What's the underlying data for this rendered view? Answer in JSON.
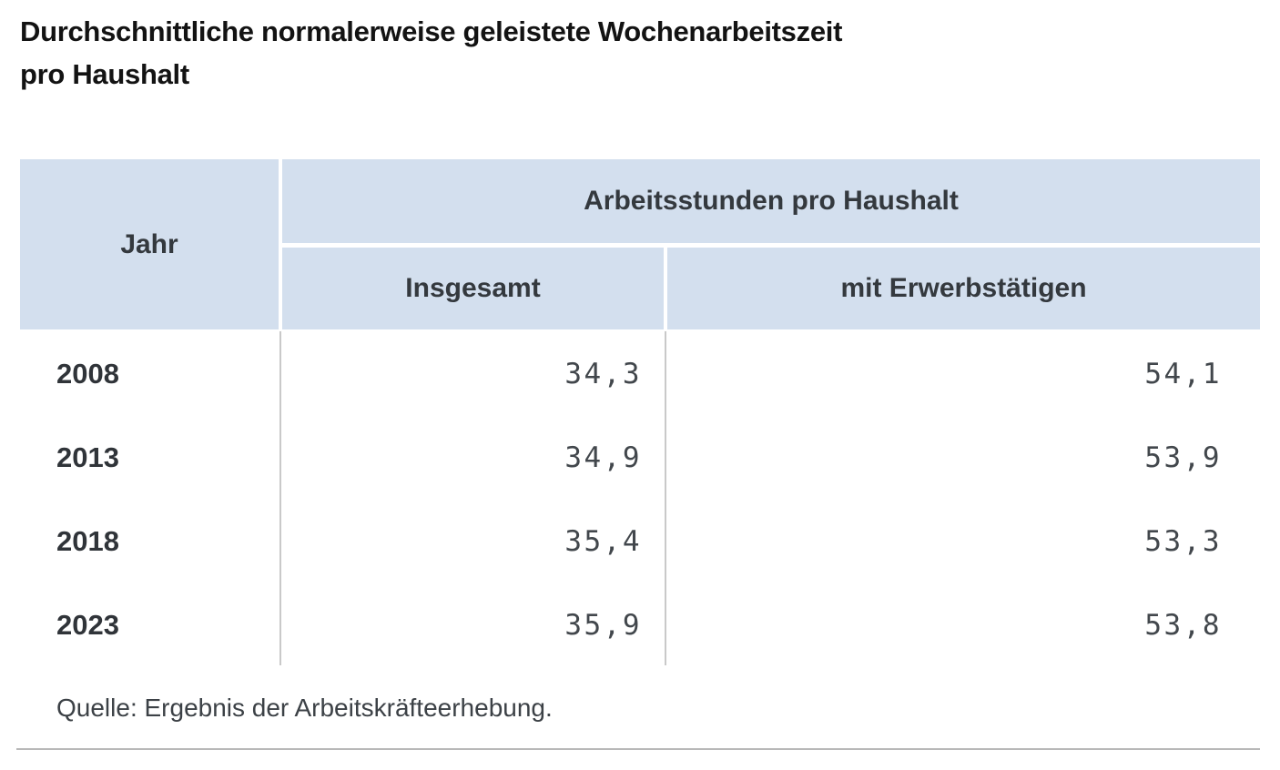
{
  "title": {
    "line1": "Durchschnittliche normalerweise geleistete Wochenarbeitszeit",
    "line2": "pro Haushalt"
  },
  "table": {
    "year_header": "Jahr",
    "group_header": "Arbeitsstunden pro Haushalt",
    "sub_header_total": "Insgesamt",
    "sub_header_employed": "mit Erwerbstätigen",
    "rows": [
      {
        "year": "2008",
        "total": "34,3",
        "employed": "54,1"
      },
      {
        "year": "2013",
        "total": "34,9",
        "employed": "53,9"
      },
      {
        "year": "2018",
        "total": "35,4",
        "employed": "53,3"
      },
      {
        "year": "2023",
        "total": "35,9",
        "employed": "53,8"
      }
    ]
  },
  "source_note": "Quelle: Ergebnis der Arbeitskräfteerhebung.",
  "colors": {
    "header_bg": "#d3dfee",
    "header_text": "#34393e",
    "title_text": "#131313",
    "year_text": "#303439",
    "value_text": "#42474c",
    "source_text": "#3c4146",
    "divider": "#c9c9c9",
    "bottom_rule": "#b8b8b8"
  },
  "chart_data": {
    "type": "table",
    "title": "Durchschnittliche normalerweise geleistete Wochenarbeitszeit pro Haushalt",
    "group_header": "Arbeitsstunden pro Haushalt",
    "categories": [
      "2008",
      "2013",
      "2018",
      "2023"
    ],
    "series": [
      {
        "name": "Insgesamt",
        "values": [
          34.3,
          34.9,
          35.4,
          35.9
        ]
      },
      {
        "name": "mit Erwerbstätigen",
        "values": [
          54.1,
          53.9,
          53.3,
          53.8
        ]
      }
    ],
    "source": "Quelle: Ergebnis der Arbeitskräfteerhebung."
  }
}
